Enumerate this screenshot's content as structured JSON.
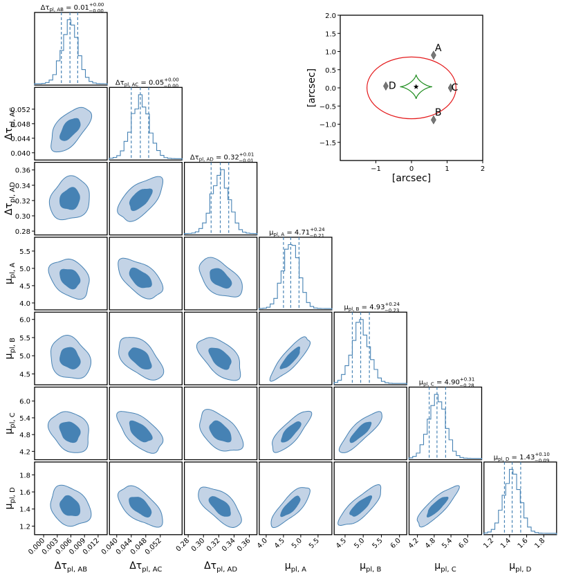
{
  "chart_data": {
    "type": "corner",
    "parameters": [
      {
        "symbol": "Δτ",
        "sub": "pl, AB",
        "title_value": "0.01",
        "plus": "+0.00",
        "minus": "−0.00",
        "range": [
          -0.002,
          0.014
        ],
        "ticks": [
          0.0,
          0.003,
          0.006,
          0.009,
          0.012
        ],
        "tick_labels": [
          "0.000",
          "0.003",
          "0.006",
          "0.009",
          "0.012"
        ],
        "median": 0.0058,
        "sd": 0.0018,
        "quantiles": [
          0.0039,
          0.0058,
          0.0075
        ]
      },
      {
        "symbol": "Δτ",
        "sub": "pl, AC",
        "title_value": "0.05",
        "plus": "+0.00",
        "minus": "−0.00",
        "range": [
          0.038,
          0.058
        ],
        "ticks": [
          0.04,
          0.044,
          0.048,
          0.052
        ],
        "tick_labels": [
          "0.040",
          "0.044",
          "0.048",
          "0.052"
        ],
        "median": 0.0465,
        "sd": 0.0025,
        "quantiles": [
          0.044,
          0.0465,
          0.0488
        ]
      },
      {
        "symbol": "Δτ",
        "sub": "pl, AD",
        "title_value": "0.32",
        "plus": "+0.01",
        "minus": "−0.01",
        "range": [
          0.275,
          0.37
        ],
        "ticks": [
          0.28,
          0.3,
          0.32,
          0.34,
          0.36
        ],
        "tick_labels": [
          "0.28",
          "0.30",
          "0.32",
          "0.34",
          "0.36"
        ],
        "median": 0.322,
        "sd": 0.0115,
        "quantiles": [
          0.31,
          0.322,
          0.333
        ]
      },
      {
        "symbol": "μ",
        "sub": "pl, A",
        "title_value": "4.71",
        "plus": "+0.24",
        "minus": "−0.21",
        "range": [
          3.8,
          5.9
        ],
        "ticks": [
          4.0,
          4.5,
          5.0,
          5.5
        ],
        "tick_labels": [
          "4.0",
          "4.5",
          "5.0",
          "5.5"
        ],
        "median": 4.71,
        "sd": 0.23,
        "quantiles": [
          4.5,
          4.71,
          4.95
        ]
      },
      {
        "symbol": "μ",
        "sub": "pl, B",
        "title_value": "4.93",
        "plus": "+0.24",
        "minus": "−0.23",
        "range": [
          4.2,
          6.2
        ],
        "ticks": [
          4.5,
          5.0,
          5.5,
          6.0
        ],
        "tick_labels": [
          "4.5",
          "5.0",
          "5.5",
          "6.0"
        ],
        "median": 4.93,
        "sd": 0.24,
        "quantiles": [
          4.7,
          4.93,
          5.17
        ]
      },
      {
        "symbol": "μ",
        "sub": "pl, C",
        "title_value": "4.90",
        "plus": "+0.31",
        "minus": "−0.28",
        "range": [
          3.9,
          6.5
        ],
        "ticks": [
          4.2,
          4.8,
          5.4,
          6.0
        ],
        "tick_labels": [
          "4.2",
          "4.8",
          "5.4",
          "6.0"
        ],
        "median": 4.9,
        "sd": 0.3,
        "quantiles": [
          4.62,
          4.9,
          5.21
        ]
      },
      {
        "symbol": "μ",
        "sub": "pl, D",
        "title_value": "1.43",
        "plus": "+0.10",
        "minus": "−0.09",
        "range": [
          1.1,
          1.95
        ],
        "ticks": [
          1.2,
          1.4,
          1.6,
          1.8
        ],
        "tick_labels": [
          "1.2",
          "1.4",
          "1.6",
          "1.8"
        ],
        "median": 1.43,
        "sd": 0.095,
        "quantiles": [
          1.34,
          1.43,
          1.53
        ]
      }
    ],
    "correlations": [
      [
        1,
        0,
        0,
        0,
        0,
        0,
        0
      ],
      [
        0.6,
        1,
        0,
        0,
        0,
        0,
        0
      ],
      [
        0.15,
        0.6,
        1,
        0,
        0,
        0,
        0
      ],
      [
        -0.3,
        -0.55,
        -0.5,
        1,
        0,
        0,
        0
      ],
      [
        -0.2,
        -0.55,
        -0.55,
        0.85,
        1,
        0,
        0
      ],
      [
        -0.25,
        -0.6,
        -0.5,
        0.8,
        0.85,
        1,
        0
      ],
      [
        -0.25,
        -0.6,
        -0.65,
        0.8,
        0.8,
        0.85,
        1
      ]
    ],
    "colors": {
      "fill_outer": "#c3d3e6",
      "fill_inner": "#4682b4",
      "line": "#4682b4",
      "curve_red": "#e41a1c",
      "curve_green": "#1a8a1a"
    },
    "lens_plot": {
      "xlabel": "[arcsec]",
      "ylabel": "[arcsec]",
      "xlim": [
        -2,
        2
      ],
      "ylim": [
        -2,
        2
      ],
      "xticks": [
        -1,
        0,
        1,
        2
      ],
      "xtick_labels": [
        "−1",
        "0",
        "1",
        "2"
      ],
      "yticks": [
        -1.5,
        -1.0,
        -0.5,
        0.0,
        0.5,
        1.0,
        1.5,
        2.0
      ],
      "ytick_labels": [
        "−1.5",
        "−1.0",
        "−0.5",
        "0.0",
        "0.5",
        "1.0",
        "1.5",
        "2.0"
      ],
      "critical_curve": {
        "center": [
          0.0,
          0.0
        ],
        "rx": 1.25,
        "ry": 0.85
      },
      "caustic": {
        "center": [
          0.13,
          0.03
        ],
        "size": 0.36
      },
      "source": [
        0.13,
        0.03
      ],
      "images": [
        {
          "name": "A",
          "x": 0.62,
          "y": 0.9
        },
        {
          "name": "B",
          "x": 0.62,
          "y": -0.88
        },
        {
          "name": "C",
          "x": 1.1,
          "y": 0.0
        },
        {
          "name": "D",
          "x": -0.72,
          "y": 0.05
        }
      ]
    }
  }
}
